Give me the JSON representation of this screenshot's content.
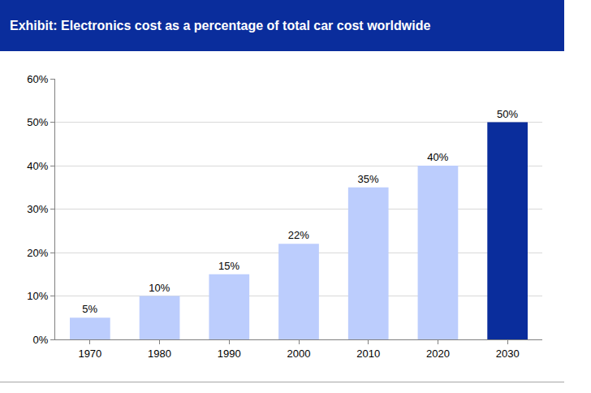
{
  "chart_data": {
    "type": "bar",
    "title": "Exhibit: Electronics cost as a percentage of total car cost worldwide",
    "categories": [
      "1970",
      "1980",
      "1990",
      "2000",
      "2010",
      "2020",
      "2030"
    ],
    "values": [
      5,
      10,
      15,
      22,
      35,
      40,
      50
    ],
    "value_labels": [
      "5%",
      "10%",
      "15%",
      "22%",
      "35%",
      "40%",
      "50%"
    ],
    "colors": [
      "#bccdfd",
      "#bccdfd",
      "#bccdfd",
      "#bccdfd",
      "#bccdfd",
      "#bccdfd",
      "#0a2d9c"
    ],
    "data_labels": true,
    "ylim": [
      0,
      60
    ],
    "yticks": [
      {
        "value": 0,
        "label": "0%"
      },
      {
        "value": 10,
        "label": "10%"
      },
      {
        "value": 20,
        "label": "20%"
      },
      {
        "value": 30,
        "label": "30%"
      },
      {
        "value": 40,
        "label": "40%"
      },
      {
        "value": 50,
        "label": "50%"
      },
      {
        "value": 60,
        "label": "60%"
      }
    ],
    "grid": true
  }
}
